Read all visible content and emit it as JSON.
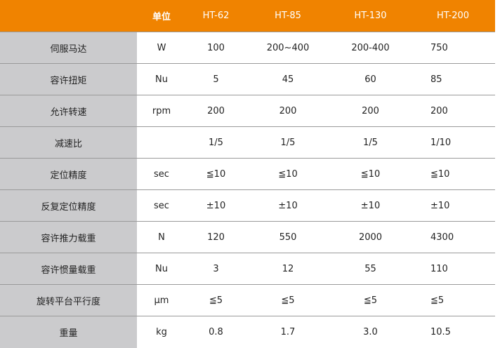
{
  "header": [
    "",
    "单位",
    "HT-62",
    "HT-85",
    "HT-130",
    "HT-200"
  ],
  "rows": [
    [
      "伺服马达",
      "W",
      "100",
      "200~400",
      "200-400",
      "750"
    ],
    [
      "容许扭矩",
      "Nu",
      "5",
      "45",
      "60",
      "85"
    ],
    [
      "允许转速",
      "rpm",
      "200",
      "200",
      "200",
      "200"
    ],
    [
      "减速比",
      "",
      "1/5",
      "1/5",
      "1/5",
      "1/10"
    ],
    [
      "定位精度",
      "sec",
      "≦10",
      "≦10",
      "≦10",
      "≦10"
    ],
    [
      "反复定位精度",
      "sec",
      "±10",
      "±10",
      "±10",
      "±10"
    ],
    [
      "容许推力载重",
      "N",
      "120",
      "550",
      "2000",
      "4300"
    ],
    [
      "容许惯量载重",
      "Nu",
      "3",
      "12",
      "55",
      "110"
    ],
    [
      "旋转平台平行度",
      "μm",
      "≦5",
      "≦5",
      "≦5",
      "≦5"
    ],
    [
      "重量",
      "kg",
      "0.8",
      "1.7",
      "3.0",
      "10.5"
    ]
  ],
  "colors": {
    "header_bg": "#F08300",
    "label_bg": "#CBCBCD"
  }
}
